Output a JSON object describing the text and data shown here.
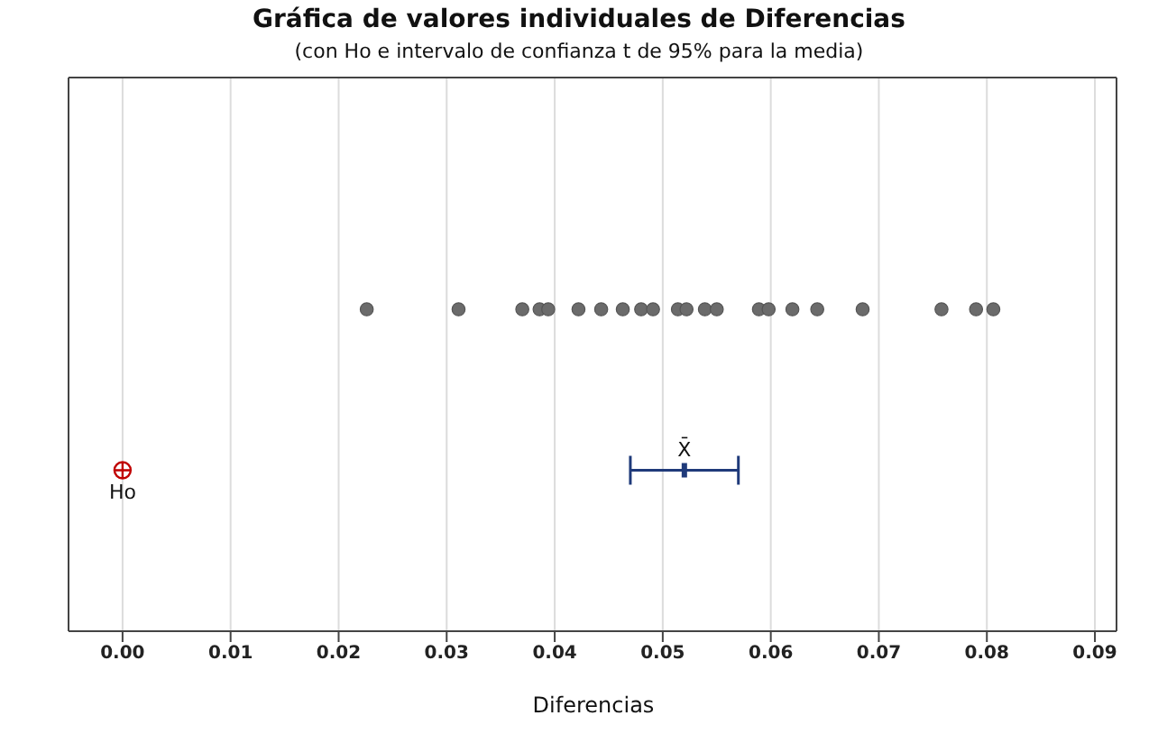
{
  "chart_data": {
    "type": "scatter",
    "orientation": "horizontal",
    "categories": [
      null,
      null
    ],
    "title": "Gráfica de valores individuales de Diferencias",
    "subtitle": "(con Ho e intervalo de confianza t de 95% para la media)",
    "xlabel": "Diferencias",
    "xlim": [
      -0.005,
      0.092
    ],
    "xticks": [
      {
        "value": 0,
        "label": "0.00"
      },
      {
        "value": 0.01,
        "label": "0.01"
      },
      {
        "value": 0.02,
        "label": "0.02"
      },
      {
        "value": 0.03,
        "label": "0.03"
      },
      {
        "value": 0.04,
        "label": "0.04"
      },
      {
        "value": 0.05,
        "label": "0.05"
      },
      {
        "value": 0.06,
        "label": "0.06"
      },
      {
        "value": 0.07,
        "label": "0.07"
      },
      {
        "value": 0.08,
        "label": "0.08"
      },
      {
        "value": 0.09,
        "label": "0.09"
      }
    ],
    "grid": "x",
    "series": [
      {
        "type": "scatter",
        "color": "#6b6b6b",
        "marker": "circle",
        "x": [
          null,
          null,
          null,
          null,
          null,
          null,
          null,
          null,
          null,
          null,
          null,
          null,
          null,
          null,
          null,
          null,
          null,
          null,
          null,
          null,
          null,
          null
        ],
        "values": [
          0.0226,
          0.0311,
          0.037,
          0.0386,
          0.0394,
          0.0422,
          0.0443,
          0.0463,
          0.048,
          0.0491,
          0.0514,
          0.0522,
          0.0539,
          0.055,
          0.0589,
          0.0598,
          0.062,
          0.0643,
          0.0685,
          0.0758,
          0.079,
          0.0806
        ]
      },
      {
        "type": "scatter",
        "color": "#c00000",
        "values": [
          null,
          0
        ]
      },
      {
        "type": "scatter",
        "color": "#1f3a7a",
        "marker": "square",
        "values": [
          null,
          0.052
        ],
        "errors": [
          null,
          [
            0.047,
            0.057
          ]
        ]
      }
    ],
    "annotations": [
      "Ho",
      "X̄"
    ]
  }
}
